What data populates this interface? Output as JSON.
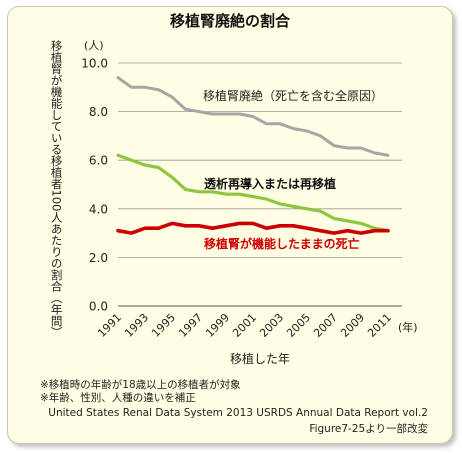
{
  "chart_data": {
    "type": "line",
    "title": "移植腎廃絶の割合",
    "ylabel": "移植腎が機能している移植者100人あたりの割合（年間）",
    "yunit": "(人)",
    "xlabel": "移植した年",
    "xunit": "(年)",
    "x": [
      1991,
      1992,
      1993,
      1994,
      1995,
      1996,
      1997,
      1998,
      1999,
      2000,
      2001,
      2002,
      2003,
      2004,
      2005,
      2006,
      2007,
      2008,
      2009,
      2010,
      2011
    ],
    "xticks": [
      "1991",
      "1993",
      "1995",
      "1997",
      "1999",
      "2001",
      "2003",
      "2005",
      "2007",
      "2009",
      "2011"
    ],
    "yticks": [
      "0.0",
      "2.0",
      "4.0",
      "6.0",
      "8.0",
      "10.0"
    ],
    "ylim": [
      0,
      10
    ],
    "grid": true,
    "series": [
      {
        "name": "移植腎廃絶（死亡を含む全原因）",
        "color": "#a6a6a6",
        "label_color": "#222222",
        "values": [
          9.4,
          9.0,
          9.0,
          8.9,
          8.6,
          8.1,
          8.0,
          7.9,
          7.9,
          7.9,
          7.8,
          7.5,
          7.5,
          7.3,
          7.2,
          7.0,
          6.6,
          6.5,
          6.5,
          6.3,
          6.2
        ]
      },
      {
        "name": "透析再導入または再移植",
        "color": "#8dc63f",
        "label_color": "#111111",
        "values": [
          6.2,
          6.0,
          5.8,
          5.7,
          5.3,
          4.8,
          4.7,
          4.7,
          4.6,
          4.6,
          4.5,
          4.4,
          4.2,
          4.1,
          4.0,
          3.9,
          3.6,
          3.5,
          3.4,
          3.2,
          3.1
        ]
      },
      {
        "name": "移植腎が機能したままの死亡",
        "color": "#cc0000",
        "label_color": "#cc0000",
        "values": [
          3.1,
          3.0,
          3.2,
          3.2,
          3.4,
          3.3,
          3.3,
          3.2,
          3.3,
          3.4,
          3.4,
          3.2,
          3.3,
          3.3,
          3.2,
          3.1,
          3.0,
          3.1,
          3.0,
          3.1,
          3.1
        ]
      }
    ]
  },
  "notes": [
    "※移植時の年齢が18歳以上の移植者が対象",
    "※年齢、性別、人種の違いを補正"
  ],
  "source": [
    "United States Renal Data System  2013 USRDS Annual Data Report vol.2",
    "Figure7-25より一部改変"
  ]
}
